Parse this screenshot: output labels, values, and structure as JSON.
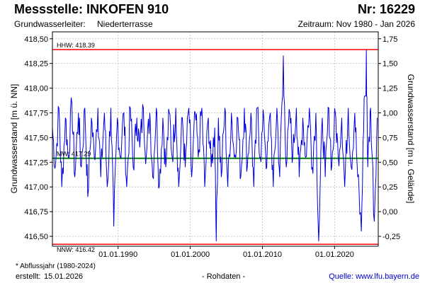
{
  "header": {
    "title": "Messstelle: INKOFEN 910",
    "number": "Nr: 16229",
    "aquifer_label": "Grundwasserleiter:",
    "aquifer_value": "Niederterrasse",
    "period": "Zeitraum: Nov 1980 - Jan 2026"
  },
  "footer": {
    "footnote": "* Abflussjahr (1980-2024)",
    "created_label": "erstellt:",
    "created_value": "15.01.2026",
    "rawdata": "- Rohdaten -",
    "source": "Quelle: www.lfu.bayern.de"
  },
  "chart_data": {
    "type": "line",
    "ylabel": "Grundwasserstand [m ü. NN]",
    "ylabel_right": "Grundwasserstand [m u. Gelände]",
    "ylim": [
      416.4,
      418.57
    ],
    "xlim": [
      1980.9,
      2026.05
    ],
    "y_ticks": [
      "416,50",
      "416,75",
      "417,00",
      "417,25",
      "417,50",
      "417,75",
      "418,00",
      "418,25",
      "418,50"
    ],
    "y_ticks_right": [
      "-0,25",
      "0,00",
      "0,25",
      "0,50",
      "0,75",
      "1,00",
      "1,25",
      "1,50",
      "1,75"
    ],
    "x_ticks": [
      "01.01.1990",
      "01.01.2000",
      "01.01.2010",
      "01.01.2020"
    ],
    "grid": true,
    "colors": {
      "series": "#0000dd",
      "extreme": "#ff0000",
      "mean": "#008000"
    },
    "reference_lines": [
      {
        "label": "HHW: 418.39",
        "value": 418.39,
        "kind": "extreme"
      },
      {
        "label": "MW: 417.29",
        "value": 417.29,
        "kind": "mean"
      },
      {
        "label": "NNW: 416.42",
        "value": 416.42,
        "kind": "extreme"
      }
    ],
    "series": [
      {
        "x": [
          1980.9,
          1981.3,
          1981.8,
          1982.2,
          1982.7,
          1983.1,
          1983.6,
          1984.0,
          1984.5,
          1984.9,
          1985.4,
          1985.8,
          1986.3,
          1986.7,
          1987.2,
          1987.6,
          1988.1,
          1988.5,
          1989.0,
          1989.4,
          1989.9,
          1990.3,
          1990.8,
          1991.2,
          1991.7,
          1992.1,
          1992.6,
          1993.0,
          1993.5,
          1993.9,
          1994.4,
          1994.8,
          1995.3,
          1995.7,
          1996.2,
          1996.6,
          1997.1,
          1997.5,
          1998.0,
          1998.4,
          1998.9,
          1999.3,
          1999.8,
          2000.2,
          2000.7,
          2001.1,
          2001.6,
          2002.0,
          2002.5,
          2002.9,
          2003.4,
          2003.6,
          2003.9,
          2004.3,
          2004.8,
          2005.2,
          2005.7,
          2006.1,
          2006.6,
          2007.0,
          2007.5,
          2007.9,
          2008.4,
          2008.8,
          2009.3,
          2009.7,
          2010.2,
          2010.6,
          2011.1,
          2011.5,
          2012.0,
          2012.4,
          2012.9,
          2013.3,
          2013.8,
          2014.2,
          2014.7,
          2015.1,
          2015.6,
          2016.0,
          2016.5,
          2016.9,
          2017.4,
          2017.8,
          2018.3,
          2018.7,
          2019.2,
          2019.6,
          2020.1,
          2020.5,
          2021.0,
          2021.4,
          2021.9,
          2022.3,
          2022.8,
          2023.2,
          2023.7,
          2024.1,
          2024.4,
          2024.6,
          2025.0,
          2025.5,
          2025.9
        ],
        "values": [
          417.6,
          417.2,
          417.8,
          417.0,
          417.7,
          417.3,
          417.85,
          417.1,
          417.75,
          417.2,
          417.8,
          416.9,
          417.7,
          417.3,
          417.8,
          417.1,
          417.75,
          417.0,
          417.8,
          416.6,
          417.7,
          417.3,
          417.75,
          417.0,
          417.8,
          417.2,
          417.7,
          417.4,
          417.8,
          417.3,
          417.75,
          417.1,
          417.8,
          417.0,
          417.7,
          417.2,
          417.75,
          417.3,
          417.8,
          417.0,
          417.7,
          417.2,
          417.8,
          417.1,
          417.75,
          417.3,
          417.8,
          417.0,
          417.7,
          417.2,
          417.6,
          416.45,
          417.7,
          417.1,
          417.8,
          417.0,
          417.75,
          417.3,
          417.7,
          417.1,
          417.8,
          417.2,
          417.75,
          417.0,
          417.8,
          417.3,
          417.7,
          417.2,
          417.75,
          417.0,
          417.8,
          417.1,
          418.33,
          417.2,
          417.75,
          417.3,
          417.8,
          417.1,
          417.7,
          417.3,
          417.8,
          417.2,
          417.75,
          416.45,
          417.7,
          417.1,
          417.8,
          417.2,
          417.75,
          417.3,
          417.7,
          417.0,
          417.8,
          417.2,
          417.75,
          417.1,
          416.55,
          417.9,
          418.39,
          417.2,
          417.8,
          416.65,
          417.7
        ]
      }
    ]
  }
}
